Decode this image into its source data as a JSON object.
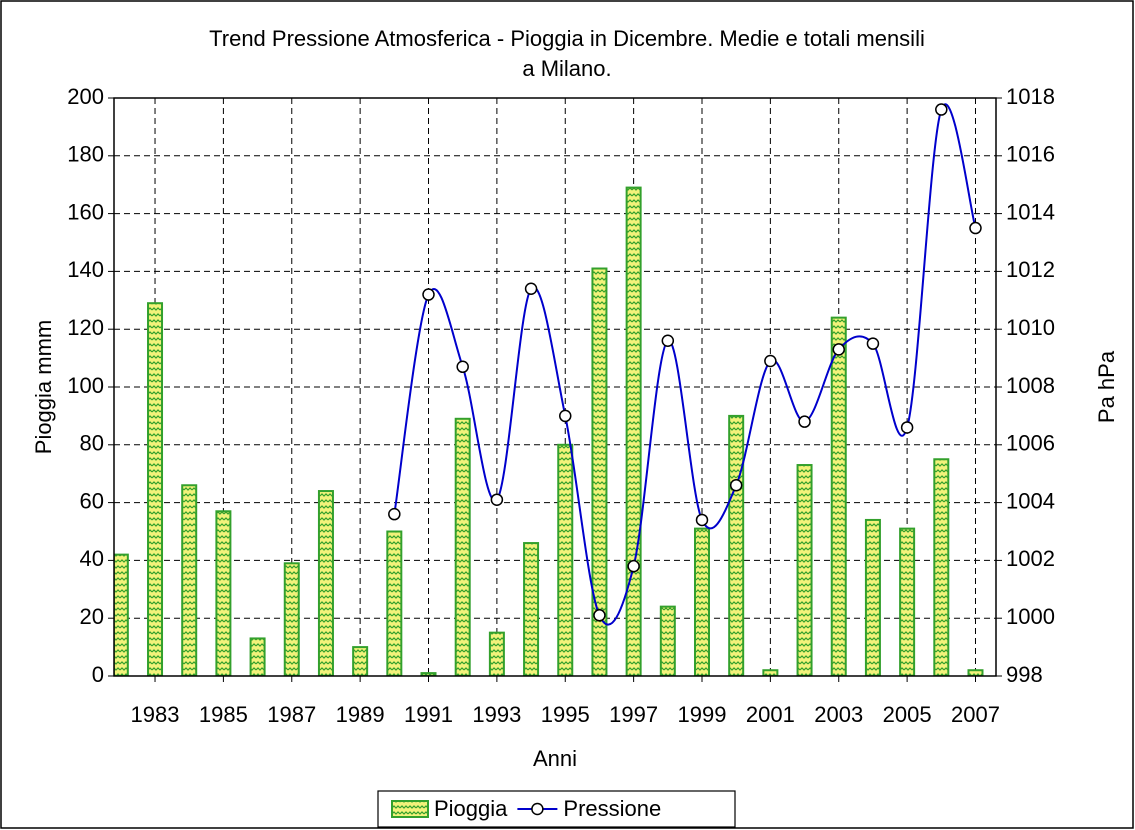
{
  "chart_data": {
    "type": "bar",
    "title": [
      "Trend Pressione Atmosferica - Pioggia in Dicembre. Medie e totali mensili",
      "a Milano."
    ],
    "x_label": "Anni",
    "y_label": "Pioggia mmm",
    "y2_label": "Pa hPa",
    "x": [
      1982,
      1983,
      1984,
      1985,
      1986,
      1987,
      1988,
      1989,
      1990,
      1991,
      1992,
      1993,
      1994,
      1995,
      1996,
      1997,
      1998,
      1999,
      2000,
      2001,
      2002,
      2003,
      2004,
      2005,
      2006,
      2007
    ],
    "series": [
      {
        "name": "Pioggia",
        "type": "bar",
        "color": "#33a02c",
        "values": [
          42,
          129,
          66,
          57,
          13,
          39,
          64,
          10,
          50,
          1,
          89,
          15,
          46,
          80,
          141,
          169,
          24,
          51,
          90,
          2,
          73,
          124,
          54,
          51,
          75,
          2
        ]
      },
      {
        "name": "Pressione",
        "type": "line",
        "axis": "y2",
        "color": "#0000cc",
        "values": [
          null,
          null,
          null,
          null,
          null,
          null,
          null,
          null,
          1003.6,
          1011.2,
          1008.7,
          1004.1,
          1011.4,
          1007.0,
          1000.1,
          1001.8,
          1009.6,
          1003.4,
          1004.6,
          1008.9,
          1006.8,
          1009.3,
          1009.5,
          1006.6,
          1017.6,
          1013.5
        ]
      }
    ],
    "xlim": [
      1981.8,
      2007.6
    ],
    "xticks": [
      1983,
      1985,
      1987,
      1989,
      1991,
      1993,
      1995,
      1997,
      1999,
      2001,
      2003,
      2005,
      2007
    ],
    "ylim": [
      0,
      200
    ],
    "yticks": [
      0,
      20,
      40,
      60,
      80,
      100,
      120,
      140,
      160,
      180,
      200
    ],
    "y2lim": [
      998,
      1018
    ],
    "y2ticks": [
      998,
      1000,
      1002,
      1004,
      1006,
      1008,
      1010,
      1012,
      1014,
      1016,
      1018
    ],
    "grid": true,
    "legend": "bottom"
  }
}
